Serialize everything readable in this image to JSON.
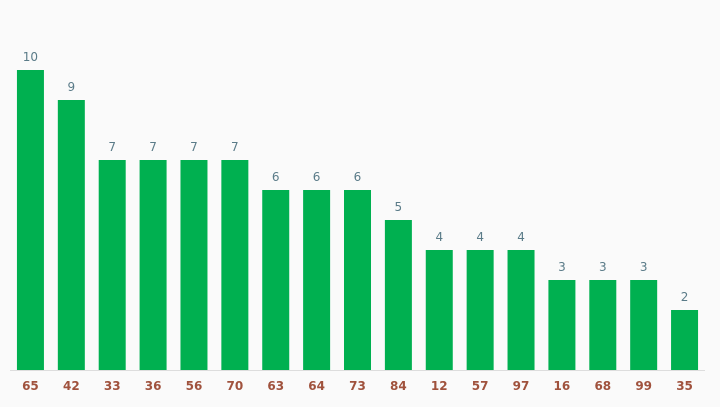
{
  "chart_data": {
    "type": "bar",
    "categories": [
      "65",
      "42",
      "33",
      "36",
      "56",
      "70",
      "63",
      "64",
      "73",
      "84",
      "12",
      "57",
      "97",
      "16",
      "68",
      "99",
      "35"
    ],
    "values": [
      10,
      9,
      7,
      7,
      7,
      7,
      6,
      6,
      6,
      5,
      4,
      4,
      4,
      3,
      3,
      3,
      2
    ],
    "title": "",
    "xlabel": "",
    "ylabel": "",
    "ylim": [
      0,
      10
    ],
    "grid": false,
    "legend": "none",
    "data_labels": true,
    "colors": {
      "bar": "#00b050",
      "value_label": "#5a7b88",
      "category_label": "#a0523d",
      "baseline": "#dddddd",
      "background": "#fafafa"
    }
  }
}
